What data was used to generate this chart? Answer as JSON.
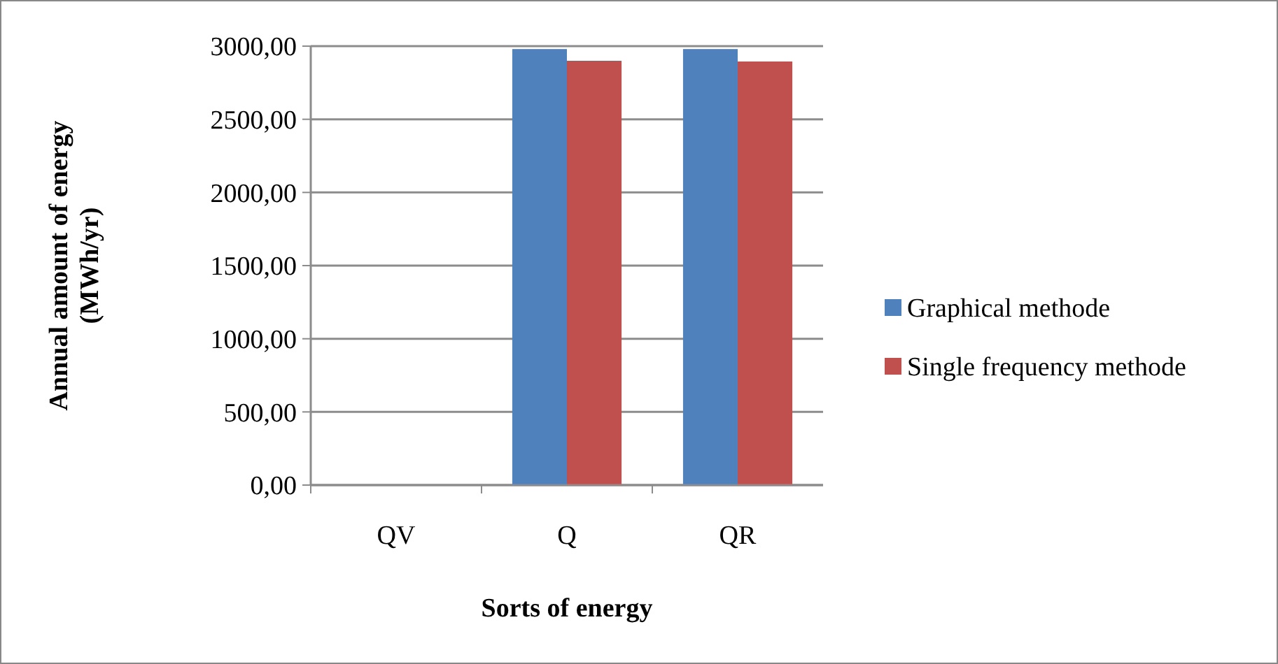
{
  "chart_data": {
    "type": "bar",
    "xlabel": "Sorts of energy",
    "ylabel": "Annual amount of energy (MWh/yr)",
    "categories": [
      "QV",
      "Q",
      "QR"
    ],
    "series": [
      {
        "name": "Graphical methode",
        "color": "#4f81bd",
        "values": [
          0,
          2980,
          2980
        ]
      },
      {
        "name": "Single frequency methode",
        "color": "#c0504d",
        "values": [
          0,
          2900,
          2895
        ]
      }
    ],
    "ylim": [
      0,
      3000
    ],
    "yticks": [
      {
        "value": 0,
        "label": "0,00"
      },
      {
        "value": 500,
        "label": "500,00"
      },
      {
        "value": 1000,
        "label": "1000,00"
      },
      {
        "value": 1500,
        "label": "1500,00"
      },
      {
        "value": 2000,
        "label": "2000,00"
      },
      {
        "value": 2500,
        "label": "2500,00"
      },
      {
        "value": 3000,
        "label": "3000,00"
      }
    ],
    "grid": "y",
    "legend": "right"
  }
}
